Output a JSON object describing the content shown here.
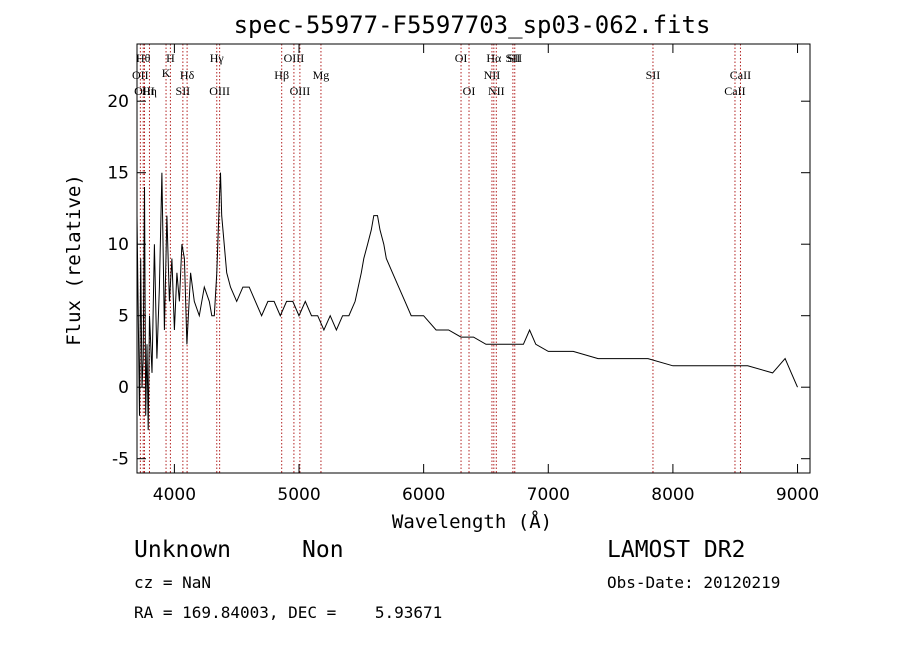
{
  "chart_data": {
    "type": "line",
    "title": "spec-55977-F5597703_sp03-062.fits",
    "xlabel": "Wavelength (Å)",
    "ylabel": "Flux (relative)",
    "xlim": [
      3700,
      9100
    ],
    "ylim": [
      -6,
      24
    ],
    "xticks": [
      4000,
      5000,
      6000,
      7000,
      8000,
      9000
    ],
    "yticks": [
      -5,
      0,
      5,
      10,
      15,
      20
    ],
    "grid": false,
    "line_color": "#000000",
    "marker_color": "#b22222",
    "series": [
      {
        "x": [
          3700,
          3720,
          3730,
          3740,
          3750,
          3760,
          3770,
          3780,
          3790,
          3800,
          3820,
          3840,
          3860,
          3880,
          3900,
          3920,
          3940,
          3960,
          3980,
          4000,
          4020,
          4040,
          4060,
          4080,
          4100,
          4130,
          4160,
          4200,
          4240,
          4280,
          4300,
          4320,
          4340,
          4360,
          4370,
          4380,
          4400,
          4420,
          4450,
          4500,
          4550,
          4600,
          4650,
          4700,
          4750,
          4800,
          4850,
          4900,
          4950,
          5000,
          5050,
          5100,
          5150,
          5200,
          5250,
          5300,
          5350,
          5400,
          5450,
          5500,
          5520,
          5550,
          5580,
          5600,
          5630,
          5650,
          5680,
          5700,
          5750,
          5800,
          5850,
          5900,
          5950,
          6000,
          6100,
          6200,
          6300,
          6400,
          6500,
          6600,
          6700,
          6800,
          6850,
          6900,
          7000,
          7200,
          7400,
          7600,
          7800,
          8000,
          8200,
          8400,
          8600,
          8800,
          8850,
          8900,
          8950,
          9000
        ],
        "y": [
          12,
          -2,
          9,
          0,
          2,
          14,
          -2,
          3,
          -3,
          5,
          1,
          10,
          2,
          7,
          15,
          4,
          12,
          6,
          9,
          4,
          8,
          6,
          10,
          9,
          3,
          8,
          6,
          5,
          7,
          6,
          5,
          5,
          8,
          13,
          15,
          12,
          10,
          8,
          7,
          6,
          7,
          7,
          6,
          5,
          6,
          6,
          5,
          6,
          6,
          5,
          6,
          5,
          5,
          4,
          5,
          4,
          5,
          5,
          6,
          8,
          9,
          10,
          11,
          12,
          12,
          11,
          10,
          9,
          8,
          7,
          6,
          5,
          5,
          5,
          4,
          4,
          3.5,
          3.5,
          3,
          3,
          3,
          3,
          4,
          3,
          2.5,
          2.5,
          2,
          2,
          2,
          1.5,
          1.5,
          1.5,
          1.5,
          1,
          1.5,
          2,
          1,
          0
        ]
      }
    ],
    "line_markers": [
      {
        "wl": 3727,
        "label": "OII",
        "row": 2
      },
      {
        "wl": 3750,
        "label": "Hθ",
        "row": 0
      },
      {
        "wl": 3760,
        "label": "OIII",
        "row": 3
      },
      {
        "wl": 3800,
        "label": "Hη",
        "row": 3
      },
      {
        "wl": 3933,
        "label": "K",
        "row": 1
      },
      {
        "wl": 3968,
        "label": "H",
        "row": 0
      },
      {
        "wl": 4068,
        "label": "SII",
        "row": 3
      },
      {
        "wl": 4102,
        "label": "Hδ",
        "row": 2
      },
      {
        "wl": 4340,
        "label": "Hγ",
        "row": 0
      },
      {
        "wl": 4363,
        "label": "OIII",
        "row": 3
      },
      {
        "wl": 4861,
        "label": "Hβ",
        "row": 2
      },
      {
        "wl": 4959,
        "label": "OIII",
        "row": 0
      },
      {
        "wl": 5007,
        "label": "OIII",
        "row": 3
      },
      {
        "wl": 5176,
        "label": "Mg",
        "row": 2
      },
      {
        "wl": 6300,
        "label": "OI",
        "row": 0
      },
      {
        "wl": 6364,
        "label": "OI",
        "row": 3
      },
      {
        "wl": 6548,
        "label": "NII",
        "row": 2
      },
      {
        "wl": 6563,
        "label": "Hα",
        "row": 0
      },
      {
        "wl": 6583,
        "label": "NII",
        "row": 3
      },
      {
        "wl": 6716,
        "label": "SII",
        "row": 0
      },
      {
        "wl": 6731,
        "label": "SII",
        "row": 0
      },
      {
        "wl": 7840,
        "label": "SII",
        "row": 2
      },
      {
        "wl": 8498,
        "label": "CaII",
        "row": 3
      },
      {
        "wl": 8542,
        "label": "CaII",
        "row": 2
      }
    ]
  },
  "info": {
    "class": "Unknown",
    "subclass": "Non",
    "survey": "LAMOST DR2",
    "cz": "cz = NaN",
    "obs_date": "Obs-Date: 20120219",
    "coords": "RA = 169.84003, DEC =    5.93671"
  }
}
